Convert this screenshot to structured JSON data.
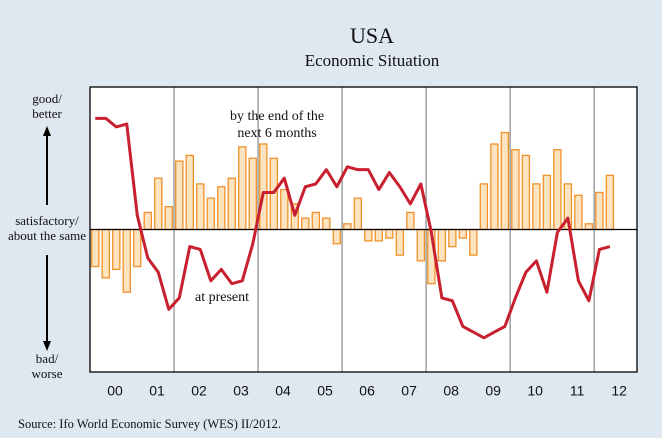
{
  "chart_data": {
    "type": "bar-line",
    "title": "USA",
    "subtitle": "Economic Situation",
    "ylabels": [
      [
        "good/",
        "better"
      ],
      [
        "satisfactory/",
        "about the same"
      ],
      [
        "bad/",
        "worse"
      ]
    ],
    "annotations": [
      {
        "lines": [
          "by the end of the",
          "next 6 months"
        ]
      },
      {
        "lines": [
          "at present"
        ]
      }
    ],
    "source": "Source: Ifo World Economic Survey (WES) II/2012.",
    "x": [
      2000.125,
      2000.375,
      2000.625,
      2000.875,
      2001.125,
      2001.375,
      2001.625,
      2001.875,
      2002.125,
      2002.375,
      2002.625,
      2002.875,
      2003.125,
      2003.375,
      2003.625,
      2003.875,
      2004.125,
      2004.375,
      2004.625,
      2004.875,
      2005.125,
      2005.375,
      2005.625,
      2005.875,
      2006.125,
      2006.375,
      2006.625,
      2006.875,
      2007.125,
      2007.375,
      2007.625,
      2007.875,
      2008.125,
      2008.375,
      2008.625,
      2008.875,
      2009.125,
      2009.375,
      2009.625,
      2009.875,
      2010.125,
      2010.375,
      2010.625,
      2010.875,
      2011.125,
      2011.375,
      2011.625,
      2011.875,
      2012.125,
      2012.375
    ],
    "series": [
      {
        "kind": "bar",
        "color": "#fde3bf",
        "stroke": "#f0922a",
        "values": [
          -13,
          -17,
          -14,
          -22,
          -13,
          6,
          18,
          8,
          24,
          26,
          16,
          11,
          15,
          18,
          29,
          25,
          30,
          25,
          14,
          9,
          4,
          6,
          4,
          -5,
          2,
          11,
          -4,
          -4,
          -3,
          -9,
          6,
          -11,
          -19,
          -11,
          -6,
          -3,
          -9,
          16,
          30,
          34,
          28,
          26,
          16,
          19,
          28,
          16,
          12,
          2,
          13,
          19
        ]
      },
      {
        "kind": "line",
        "color": "#c8202e",
        "values": [
          39,
          39,
          36,
          37,
          5,
          -10,
          -15,
          -28,
          -24,
          -6,
          -7,
          -18,
          -14,
          -19,
          -18,
          -5,
          13,
          13,
          18,
          5,
          15,
          16,
          21,
          15,
          22,
          21,
          21,
          14,
          20,
          15,
          9,
          16,
          -1,
          -24,
          -25,
          -34,
          -36,
          -38,
          -36,
          -34,
          -24,
          -15,
          -11,
          -22,
          -1,
          4,
          -18,
          -25,
          -7,
          -6
        ]
      }
    ],
    "xlim": [
      2000,
      2013.02
    ],
    "ylim": [
      -50,
      50
    ],
    "xticks": [
      {
        "value": 2000.5,
        "label": "00"
      },
      {
        "value": 2001.5,
        "label": "01"
      },
      {
        "value": 2002.5,
        "label": "02"
      },
      {
        "value": 2003.5,
        "label": "03"
      },
      {
        "value": 2004.5,
        "label": "04"
      },
      {
        "value": 2005.5,
        "label": "05"
      },
      {
        "value": 2006.5,
        "label": "06"
      },
      {
        "value": 2007.5,
        "label": "07"
      },
      {
        "value": 2008.5,
        "label": "08"
      },
      {
        "value": 2009.5,
        "label": "09"
      },
      {
        "value": 2010.5,
        "label": "10"
      },
      {
        "value": 2011.5,
        "label": "11"
      },
      {
        "value": 2012.5,
        "label": "12"
      }
    ],
    "xgrid": [
      2002,
      2004,
      2006,
      2008,
      2010,
      2012
    ]
  }
}
